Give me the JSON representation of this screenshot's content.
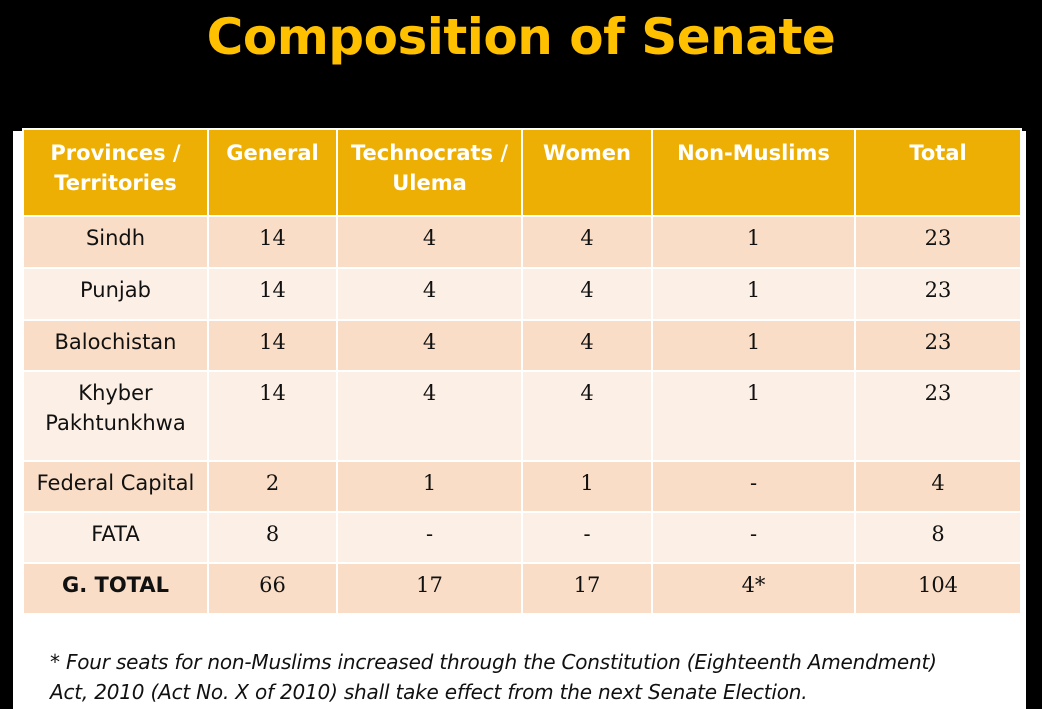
{
  "title": "Composition of Senate",
  "table": {
    "headers": [
      "Provinces / Territories",
      "General",
      "Technocrats / Ulema",
      "Women",
      "Non-Muslims",
      "Total"
    ],
    "rows": [
      [
        "Sindh",
        "14",
        "4",
        "4",
        "1",
        "23"
      ],
      [
        "Punjab",
        "14",
        "4",
        "4",
        "1",
        "23"
      ],
      [
        "Balochistan",
        "14",
        "4",
        "4",
        "1",
        "23"
      ],
      [
        "Khyber Pakhtunkhwa",
        "14",
        "4",
        "4",
        "1",
        "23"
      ],
      [
        "Federal Capital",
        "2",
        "1",
        "1",
        "-",
        "4"
      ],
      [
        "FATA",
        "8",
        "-",
        "-",
        "-",
        "8"
      ],
      [
        "G. TOTAL",
        "66",
        "17",
        "17",
        "4*",
        "104"
      ]
    ]
  },
  "footnote": {
    "line1": "* Four seats for non-Muslims increased through the Constitution (Eighteenth Amendment)",
    "line2": "Act, 2010 (Act No. X of 2010) shall take effect from the next Senate Election."
  },
  "colors": {
    "title": "#ffc000",
    "header_bg": "#eeaf05",
    "row_dark": "#f9ddc6",
    "row_light": "#fcefe5",
    "background": "#000000"
  }
}
